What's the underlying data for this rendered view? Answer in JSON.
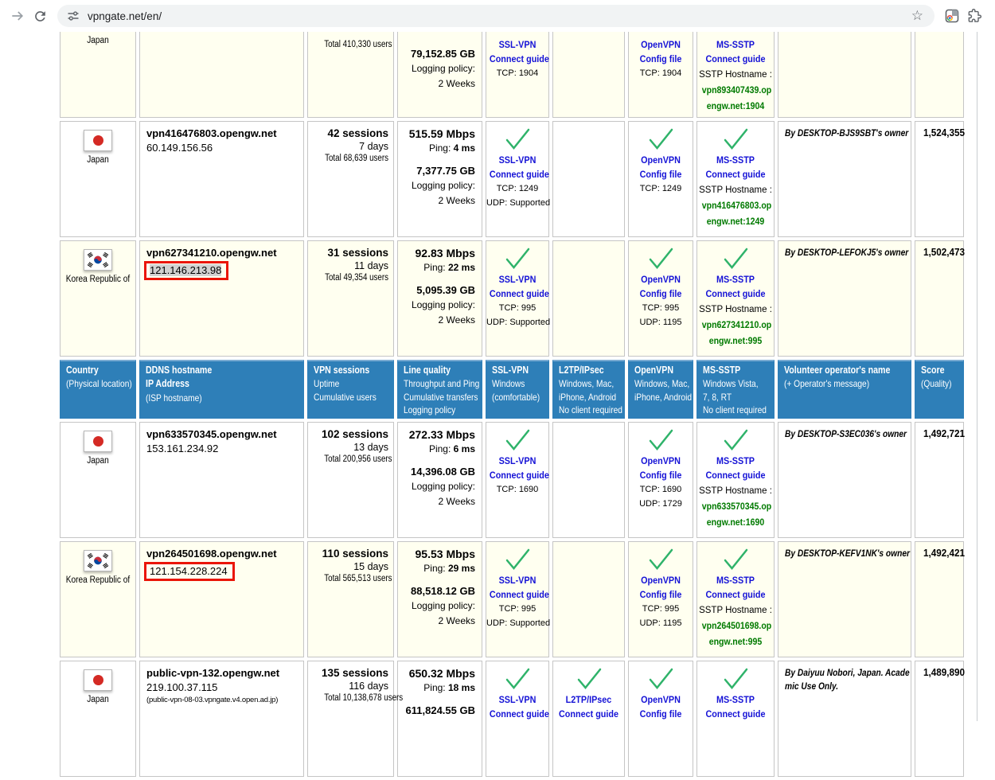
{
  "browser": {
    "url": "vpngate.net/en/"
  },
  "colors": {
    "header_blue": "#2e7fb8",
    "header_blue_top": "#7aabd2",
    "row_cream": "#fffff0",
    "cell_border": "#c5c5c5",
    "check_green": "#2fb36a",
    "link_blue": "#1512d6",
    "host_green": "#007a00",
    "red_box": "#ea1508",
    "ip_selection": "#d2d2d2"
  },
  "table": {
    "header_columns": [
      {
        "name": "country",
        "lines": [
          {
            "t": "Country",
            "b": true
          },
          {
            "t": "(Physical location)"
          }
        ]
      },
      {
        "name": "ddns",
        "lines": [
          {
            "t": "DDNS hostname",
            "b": true
          },
          {
            "t": "IP Address",
            "b": true
          },
          {
            "t": "(ISP hostname)"
          }
        ]
      },
      {
        "name": "sessions",
        "lines": [
          {
            "t": "VPN sessions",
            "b": true
          },
          {
            "t": "Uptime"
          },
          {
            "t": "Cumulative users"
          }
        ]
      },
      {
        "name": "quality",
        "lines": [
          {
            "t": "Line quality",
            "b": true
          },
          {
            "t": "Throughput and Ping"
          },
          {
            "t": "Cumulative transfers"
          },
          {
            "t": "Logging policy"
          }
        ]
      },
      {
        "name": "ssl-vpn",
        "lines": [
          {
            "t": "SSL-VPN",
            "b": true
          },
          {
            "t": "Windows"
          },
          {
            "t": "(comfortable)"
          }
        ]
      },
      {
        "name": "l2tp-ipsec",
        "lines": [
          {
            "t": "L2TP/IPsec",
            "b": true
          },
          {
            "t": "Windows, Mac,"
          },
          {
            "t": "iPhone, Android"
          },
          {
            "t": "No client required"
          }
        ]
      },
      {
        "name": "openvpn",
        "lines": [
          {
            "t": "OpenVPN",
            "b": true
          },
          {
            "t": "Windows, Mac,"
          },
          {
            "t": "iPhone, Android"
          }
        ]
      },
      {
        "name": "ms-sstp",
        "lines": [
          {
            "t": "MS-SSTP",
            "b": true
          },
          {
            "t": "Windows Vista,"
          },
          {
            "t": "7, 8, RT"
          },
          {
            "t": "No client required"
          }
        ]
      },
      {
        "name": "operator",
        "lines": [
          {
            "t": "Volunteer operator's name",
            "b": true
          },
          {
            "t": "(+ Operator's message)"
          }
        ]
      },
      {
        "name": "score",
        "lines": [
          {
            "t": "Score",
            "b": true
          },
          {
            "t": "(Quality)"
          }
        ]
      }
    ],
    "entries": [
      {
        "kind": "server",
        "clipped": true,
        "country": "Japan",
        "flag": "jp",
        "users": "Total 410,330 users",
        "transfer": "79,152.85 GB",
        "logging": [
          "Logging policy:",
          "2 Weeks"
        ],
        "sslvpn": {
          "links": [
            "SSL-VPN",
            "Connect guide"
          ],
          "lines": [
            "TCP: 1904"
          ]
        },
        "openvpn": {
          "links": [
            "OpenVPN",
            "Config file"
          ],
          "lines": [
            "TCP: 1904"
          ]
        },
        "mssstp": {
          "links": [
            "MS-SSTP",
            "Connect guide"
          ],
          "note": "SSTP Hostname :",
          "host": [
            "vpn893407439.op",
            "engw.net:1904"
          ]
        }
      },
      {
        "kind": "server",
        "country": "Japan",
        "flag": "jp",
        "hostname": "vpn416476803.opengw.net",
        "ip": "60.149.156.56",
        "sessions": "42 sessions",
        "uptime": "7 days",
        "users": "Total 68,639 users",
        "mbps": "515.59 Mbps",
        "ping_label": "Ping:",
        "ping": "4 ms",
        "transfer": "7,377.75 GB",
        "logging": [
          "Logging policy:",
          "2 Weeks"
        ],
        "sslvpn": {
          "check": true,
          "links": [
            "SSL-VPN",
            "Connect guide"
          ],
          "lines": [
            "TCP: 1249",
            "UDP: Supported"
          ]
        },
        "openvpn": {
          "check": true,
          "links": [
            "OpenVPN",
            "Config file"
          ],
          "lines": [
            "TCP: 1249"
          ]
        },
        "mssstp": {
          "check": true,
          "links": [
            "MS-SSTP",
            "Connect guide"
          ],
          "note": "SSTP Hostname :",
          "host": [
            "vpn416476803.op",
            "engw.net:1249"
          ]
        },
        "operator": [
          "By DESKTOP-BJS9SBT's owner"
        ],
        "score": "1,524,355"
      },
      {
        "kind": "server",
        "country": "Korea Republic of",
        "flag": "kr",
        "hostname": "vpn627341210.opengw.net",
        "ip": "121.146.213.98",
        "ip_box": true,
        "ip_selected": true,
        "sessions": "31 sessions",
        "uptime": "11 days",
        "users": "Total 49,354 users",
        "mbps": "92.83 Mbps",
        "ping_label": "Ping:",
        "ping": "22 ms",
        "transfer": "5,095.39 GB",
        "logging": [
          "Logging policy:",
          "2 Weeks"
        ],
        "sslvpn": {
          "check": true,
          "links": [
            "SSL-VPN",
            "Connect guide"
          ],
          "lines": [
            "TCP: 995",
            "UDP: Supported"
          ]
        },
        "openvpn": {
          "check": true,
          "links": [
            "OpenVPN",
            "Config file"
          ],
          "lines": [
            "TCP: 995",
            "UDP: 1195"
          ]
        },
        "mssstp": {
          "check": true,
          "links": [
            "MS-SSTP",
            "Connect guide"
          ],
          "note": "SSTP Hostname :",
          "host": [
            "vpn627341210.op",
            "engw.net:995"
          ]
        },
        "operator": [
          "By DESKTOP-LEFOKJ5's owner"
        ],
        "score": "1,502,473"
      },
      {
        "kind": "header"
      },
      {
        "kind": "server",
        "country": "Japan",
        "flag": "jp",
        "hostname": "vpn633570345.opengw.net",
        "ip": "153.161.234.92",
        "sessions": "102 sessions",
        "uptime": "13 days",
        "users": "Total 200,956 users",
        "mbps": "272.33 Mbps",
        "ping_label": "Ping:",
        "ping": "6 ms",
        "transfer": "14,396.08 GB",
        "logging": [
          "Logging policy:",
          "2 Weeks"
        ],
        "sslvpn": {
          "check": true,
          "links": [
            "SSL-VPN",
            "Connect guide"
          ],
          "lines": [
            "TCP: 1690"
          ]
        },
        "openvpn": {
          "check": true,
          "links": [
            "OpenVPN",
            "Config file"
          ],
          "lines": [
            "TCP: 1690",
            "UDP: 1729"
          ]
        },
        "mssstp": {
          "check": true,
          "links": [
            "MS-SSTP",
            "Connect guide"
          ],
          "note": "SSTP Hostname :",
          "host": [
            "vpn633570345.op",
            "engw.net:1690"
          ]
        },
        "operator": [
          "By DESKTOP-S3EC036's owner"
        ],
        "score": "1,492,721"
      },
      {
        "kind": "server",
        "country": "Korea Republic of",
        "flag": "kr",
        "hostname": "vpn264501698.opengw.net",
        "ip": "121.154.228.224",
        "ip_box": true,
        "sessions": "110 sessions",
        "uptime": "15 days",
        "users": "Total 565,513 users",
        "mbps": "95.53 Mbps",
        "ping_label": "Ping:",
        "ping": "29 ms",
        "transfer": "88,518.12 GB",
        "logging": [
          "Logging policy:",
          "2 Weeks"
        ],
        "sslvpn": {
          "check": true,
          "links": [
            "SSL-VPN",
            "Connect guide"
          ],
          "lines": [
            "TCP: 995",
            "UDP: Supported"
          ]
        },
        "openvpn": {
          "check": true,
          "links": [
            "OpenVPN",
            "Config file"
          ],
          "lines": [
            "TCP: 995",
            "UDP: 1195"
          ]
        },
        "mssstp": {
          "check": true,
          "links": [
            "MS-SSTP",
            "Connect guide"
          ],
          "note": "SSTP Hostname :",
          "host": [
            "vpn264501698.op",
            "engw.net:995"
          ]
        },
        "operator": [
          "By DESKTOP-KEFV1NK's owner"
        ],
        "score": "1,492,421"
      },
      {
        "kind": "server",
        "country": "Japan",
        "flag": "jp",
        "hostname": "public-vpn-132.opengw.net",
        "ip": "219.100.37.115",
        "isp": "(public-vpn-08-03.vpngate.v4.open.ad.jp)",
        "sessions": "135 sessions",
        "uptime": "116 days",
        "users": "Total 10,138,678 users",
        "mbps": "650.32 Mbps",
        "ping_label": "Ping:",
        "ping": "18 ms",
        "transfer": "611,824.55 GB",
        "sslvpn": {
          "check": true,
          "links": [
            "SSL-VPN",
            "Connect guide"
          ]
        },
        "l2tp": {
          "check": true,
          "links": [
            "L2TP/IPsec",
            "Connect guide"
          ]
        },
        "openvpn": {
          "check": true,
          "links": [
            "OpenVPN",
            "Config file"
          ]
        },
        "mssstp": {
          "check": true,
          "links": [
            "MS-SSTP",
            "Connect guide"
          ]
        },
        "operator": [
          "By Daiyuu Nobori, Japan. Acade",
          "mic Use Only."
        ],
        "score": "1,489,890"
      }
    ]
  }
}
